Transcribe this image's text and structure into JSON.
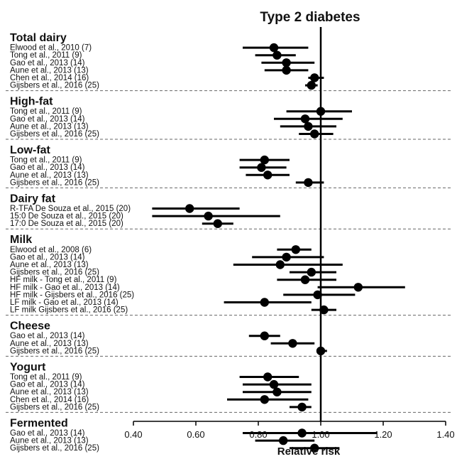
{
  "chart_data": {
    "type": "forest",
    "title": "Type 2 diabetes",
    "xlabel": "Relative risk",
    "xlim": [
      0.4,
      1.4
    ],
    "xticks": [
      "0.40",
      "0.60",
      "0.80",
      "1.00",
      "1.20",
      "1.40"
    ],
    "reference_line": 1.0,
    "groups": [
      {
        "name": "Total dairy",
        "studies": [
          {
            "label": "Elwood et al., 2010 (7)",
            "rr": 0.85,
            "lower": 0.75,
            "upper": 0.96
          },
          {
            "label": "Tong et al., 2011 (9)",
            "rr": 0.86,
            "lower": 0.79,
            "upper": 0.92
          },
          {
            "label": "Gao et al., 2013 (14)",
            "rr": 0.89,
            "lower": 0.81,
            "upper": 0.98
          },
          {
            "label": "Aune et al., 2013 (13)",
            "rr": 0.89,
            "lower": 0.82,
            "upper": 0.96
          },
          {
            "label": "Chen et al., 2014 (16)",
            "rr": 0.98,
            "lower": 0.96,
            "upper": 1.01
          },
          {
            "label": "Gijsbers et al., 2016 (25)",
            "rr": 0.97,
            "lower": 0.95,
            "upper": 0.99
          }
        ]
      },
      {
        "name": "High-fat",
        "studies": [
          {
            "label": "Tong et al., 2011 (9)",
            "rr": 1.0,
            "lower": 0.89,
            "upper": 1.1
          },
          {
            "label": "Gao et al., 2013 (14)",
            "rr": 0.95,
            "lower": 0.85,
            "upper": 1.07
          },
          {
            "label": "Aune et al., 2013 (13)",
            "rr": 0.96,
            "lower": 0.87,
            "upper": 1.05
          },
          {
            "label": "Gijsbers et al., 2016 (25)",
            "rr": 0.98,
            "lower": 0.93,
            "upper": 1.04
          }
        ]
      },
      {
        "name": "Low-fat",
        "studies": [
          {
            "label": "Tong et al., 2011 (9)",
            "rr": 0.82,
            "lower": 0.74,
            "upper": 0.9
          },
          {
            "label": "Gao et al., 2013 (14)",
            "rr": 0.81,
            "lower": 0.74,
            "upper": 0.89
          },
          {
            "label": "Aune et al., 2013 (13)",
            "rr": 0.83,
            "lower": 0.76,
            "upper": 0.9
          },
          {
            "label": "Gijsbers et al., 2016 (25)",
            "rr": 0.96,
            "lower": 0.92,
            "upper": 1.01
          }
        ]
      },
      {
        "name": "Dairy fat",
        "studies": [
          {
            "label": "R-TFA De Souza et al., 2015 (20)",
            "rr": 0.58,
            "lower": 0.46,
            "upper": 0.74
          },
          {
            "label": "15:0 De Souza et al., 2015 (20)",
            "rr": 0.64,
            "lower": 0.46,
            "upper": 0.87
          },
          {
            "label": "17:0 De Souza et al., 2015 (20)",
            "rr": 0.67,
            "lower": 0.62,
            "upper": 0.72
          }
        ]
      },
      {
        "name": "Milk",
        "studies": [
          {
            "label": "Elwood et al., 2008 (6)",
            "rr": 0.92,
            "lower": 0.86,
            "upper": 0.97
          },
          {
            "label": "Gao et al., 2013 (14)",
            "rr": 0.89,
            "lower": 0.78,
            "upper": 1.01
          },
          {
            "label": "Aune et al., 2013 (13)",
            "rr": 0.87,
            "lower": 0.72,
            "upper": 1.07
          },
          {
            "label": "Gijsbers et al., 2016 (25)",
            "rr": 0.97,
            "lower": 0.9,
            "upper": 1.05
          },
          {
            "label": "HF milk - Tong et al., 2011 (9)",
            "rr": 0.95,
            "lower": 0.86,
            "upper": 1.05
          },
          {
            "label": "HF milk - Gao et al., 2013 (14)",
            "rr": 1.12,
            "lower": 0.99,
            "upper": 1.27
          },
          {
            "label": "HF milk - Gijsbers et al., 2016 (25)",
            "rr": 0.99,
            "lower": 0.88,
            "upper": 1.11
          },
          {
            "label": "LF milk - Gao et al., 2013 (14)",
            "rr": 0.82,
            "lower": 0.69,
            "upper": 0.97
          },
          {
            "label": "LF milk Gijsbers et al., 2016 (25)",
            "rr": 1.01,
            "lower": 0.97,
            "upper": 1.05
          }
        ]
      },
      {
        "name": "Cheese",
        "studies": [
          {
            "label": "Gao et al., 2013 (14)",
            "rr": 0.82,
            "lower": 0.77,
            "upper": 0.87
          },
          {
            "label": "Aune et al., 2013 (13)",
            "rr": 0.91,
            "lower": 0.84,
            "upper": 0.98
          },
          {
            "label": "Gijsbers et al., 2016 (25)",
            "rr": 1.0,
            "lower": 0.99,
            "upper": 1.02
          }
        ]
      },
      {
        "name": "Yogurt",
        "studies": [
          {
            "label": "Tong et al., 2011 (9)",
            "rr": 0.83,
            "lower": 0.74,
            "upper": 0.93
          },
          {
            "label": "Gao et al., 2013 (14)",
            "rr": 0.85,
            "lower": 0.75,
            "upper": 0.97
          },
          {
            "label": "Aune et al., 2013 (13)",
            "rr": 0.86,
            "lower": 0.75,
            "upper": 0.97
          },
          {
            "label": "Chen et al., 2014 (16)",
            "rr": 0.82,
            "lower": 0.7,
            "upper": 0.96
          },
          {
            "label": "Gijsbers et al., 2016 (25)",
            "rr": 0.94,
            "lower": 0.9,
            "upper": 0.97
          }
        ]
      },
      {
        "name": "Fermented",
        "studies": [
          {
            "label": "Gao et al., 2013 (14)",
            "rr": 0.94,
            "lower": 0.75,
            "upper": 1.18
          },
          {
            "label": "Aune et al., 2013 (13)",
            "rr": 0.88,
            "lower": 0.79,
            "upper": 0.98
          },
          {
            "label": "Gijsbers et al., 2016 (25)",
            "rr": 0.98,
            "lower": 0.9,
            "upper": 1.06
          }
        ]
      }
    ]
  }
}
